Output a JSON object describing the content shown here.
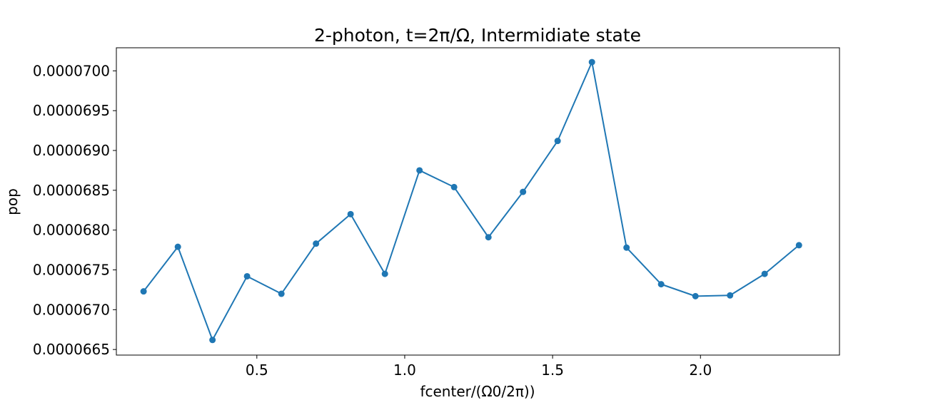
{
  "chart_data": {
    "type": "line",
    "title": "2-photon, t=2π/Ω, Intermidiate state",
    "xlabel": "fcenter/(Ω0/2π))",
    "ylabel": "pop",
    "xlim": [
      0.025,
      2.47
    ],
    "ylim": [
      6.643e-05,
      7.029e-05
    ],
    "xticks": [
      0.5,
      1.0,
      1.5,
      2.0
    ],
    "xtick_labels": [
      "0.5",
      "1.0",
      "1.5",
      "2.0"
    ],
    "yticks": [
      6.65e-05,
      6.7e-05,
      6.75e-05,
      6.8e-05,
      6.85e-05,
      6.9e-05,
      6.95e-05,
      7e-05
    ],
    "ytick_labels": [
      "0.0000665",
      "0.0000670",
      "0.0000675",
      "0.0000680",
      "0.0000685",
      "0.0000690",
      "0.0000695",
      "0.0000700"
    ],
    "grid": false,
    "series": [
      {
        "color": "#1f77b4",
        "marker": "circle",
        "x": [
          0.117,
          0.233,
          0.35,
          0.467,
          0.583,
          0.7,
          0.817,
          0.933,
          1.05,
          1.167,
          1.283,
          1.4,
          1.517,
          1.633,
          1.75,
          1.867,
          1.983,
          2.1,
          2.217,
          2.333
        ],
        "y": [
          6.723e-05,
          6.779e-05,
          6.662e-05,
          6.742e-05,
          6.72e-05,
          6.783e-05,
          6.82e-05,
          6.745e-05,
          6.875e-05,
          6.854e-05,
          6.791e-05,
          6.848e-05,
          6.912e-05,
          7.011e-05,
          6.778e-05,
          6.732e-05,
          6.717e-05,
          6.718e-05,
          6.745e-05,
          6.781e-05
        ]
      }
    ]
  }
}
